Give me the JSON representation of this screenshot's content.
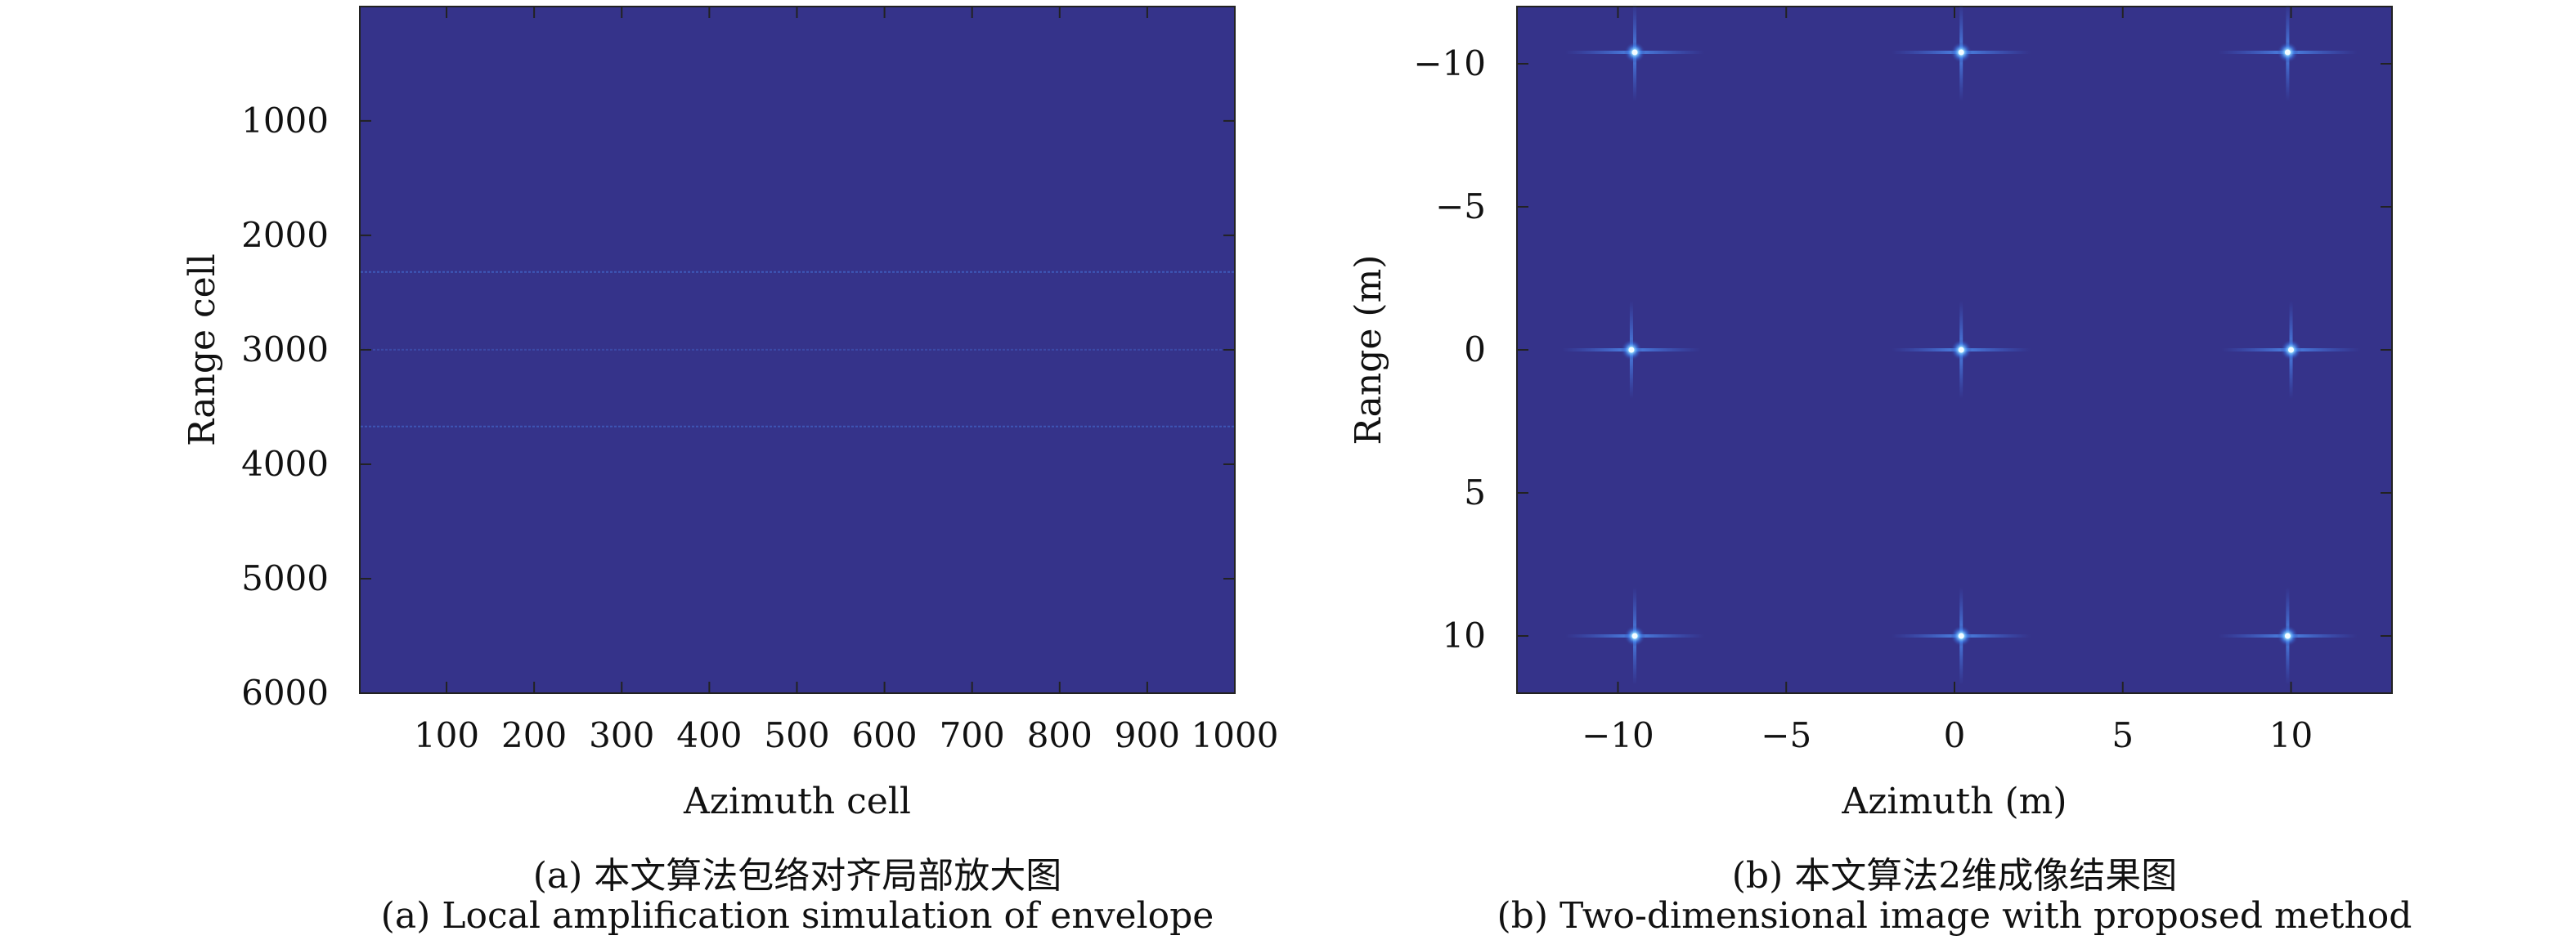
{
  "colors": {
    "background": "#35338a",
    "streak": "#3f6dde",
    "point_core": "#d8f6ff",
    "point_glow": "#5aa9ff",
    "axis": "#222222"
  },
  "chart_data": [
    {
      "type": "heatmap",
      "panel": "a",
      "xlabel": "Azimuth cell",
      "ylabel": "Range cell",
      "xlim": [
        1,
        1000
      ],
      "ylim": [
        1,
        6000
      ],
      "y_inverted": true,
      "xticks": [
        100,
        200,
        300,
        400,
        500,
        600,
        700,
        800,
        900,
        1000
      ],
      "yticks": [
        1000,
        2000,
        3000,
        4000,
        5000,
        6000
      ],
      "features": [
        {
          "kind": "envelope-line",
          "range_cell": 2320,
          "azimuth_span": [
            1,
            1000
          ],
          "intensity": 0.5
        },
        {
          "kind": "envelope-line",
          "range_cell": 3000,
          "azimuth_span": [
            1,
            1000
          ],
          "intensity": 0.3
        },
        {
          "kind": "envelope-line",
          "range_cell": 3670,
          "azimuth_span": [
            1,
            1000
          ],
          "intensity": 0.45
        }
      ],
      "caption_cn": "(a) 本文算法包络对齐局部放大图",
      "caption_en": "(a) Local amplification simulation of envelope"
    },
    {
      "type": "heatmap",
      "panel": "b",
      "xlabel": "Azimuth (m)",
      "ylabel": "Range (m)",
      "xlim": [
        -13,
        13
      ],
      "ylim": [
        -12,
        12
      ],
      "y_inverted": true,
      "xticks": [
        -10,
        -5,
        0,
        5,
        10
      ],
      "yticks": [
        -10,
        -5,
        0,
        5,
        10
      ],
      "scatterers": [
        {
          "x": -9.5,
          "y": -10.4
        },
        {
          "x": 0.2,
          "y": -10.4
        },
        {
          "x": 9.9,
          "y": -10.4
        },
        {
          "x": -9.6,
          "y": 0.0
        },
        {
          "x": 0.2,
          "y": 0.0
        },
        {
          "x": 10.0,
          "y": 0.0
        },
        {
          "x": -9.5,
          "y": 10.0
        },
        {
          "x": 0.2,
          "y": 10.0
        },
        {
          "x": 9.9,
          "y": 10.0
        }
      ],
      "caption_cn": "(b) 本文算法2维成像结果图",
      "caption_en": "(b) Two-dimensional image with proposed method"
    }
  ]
}
